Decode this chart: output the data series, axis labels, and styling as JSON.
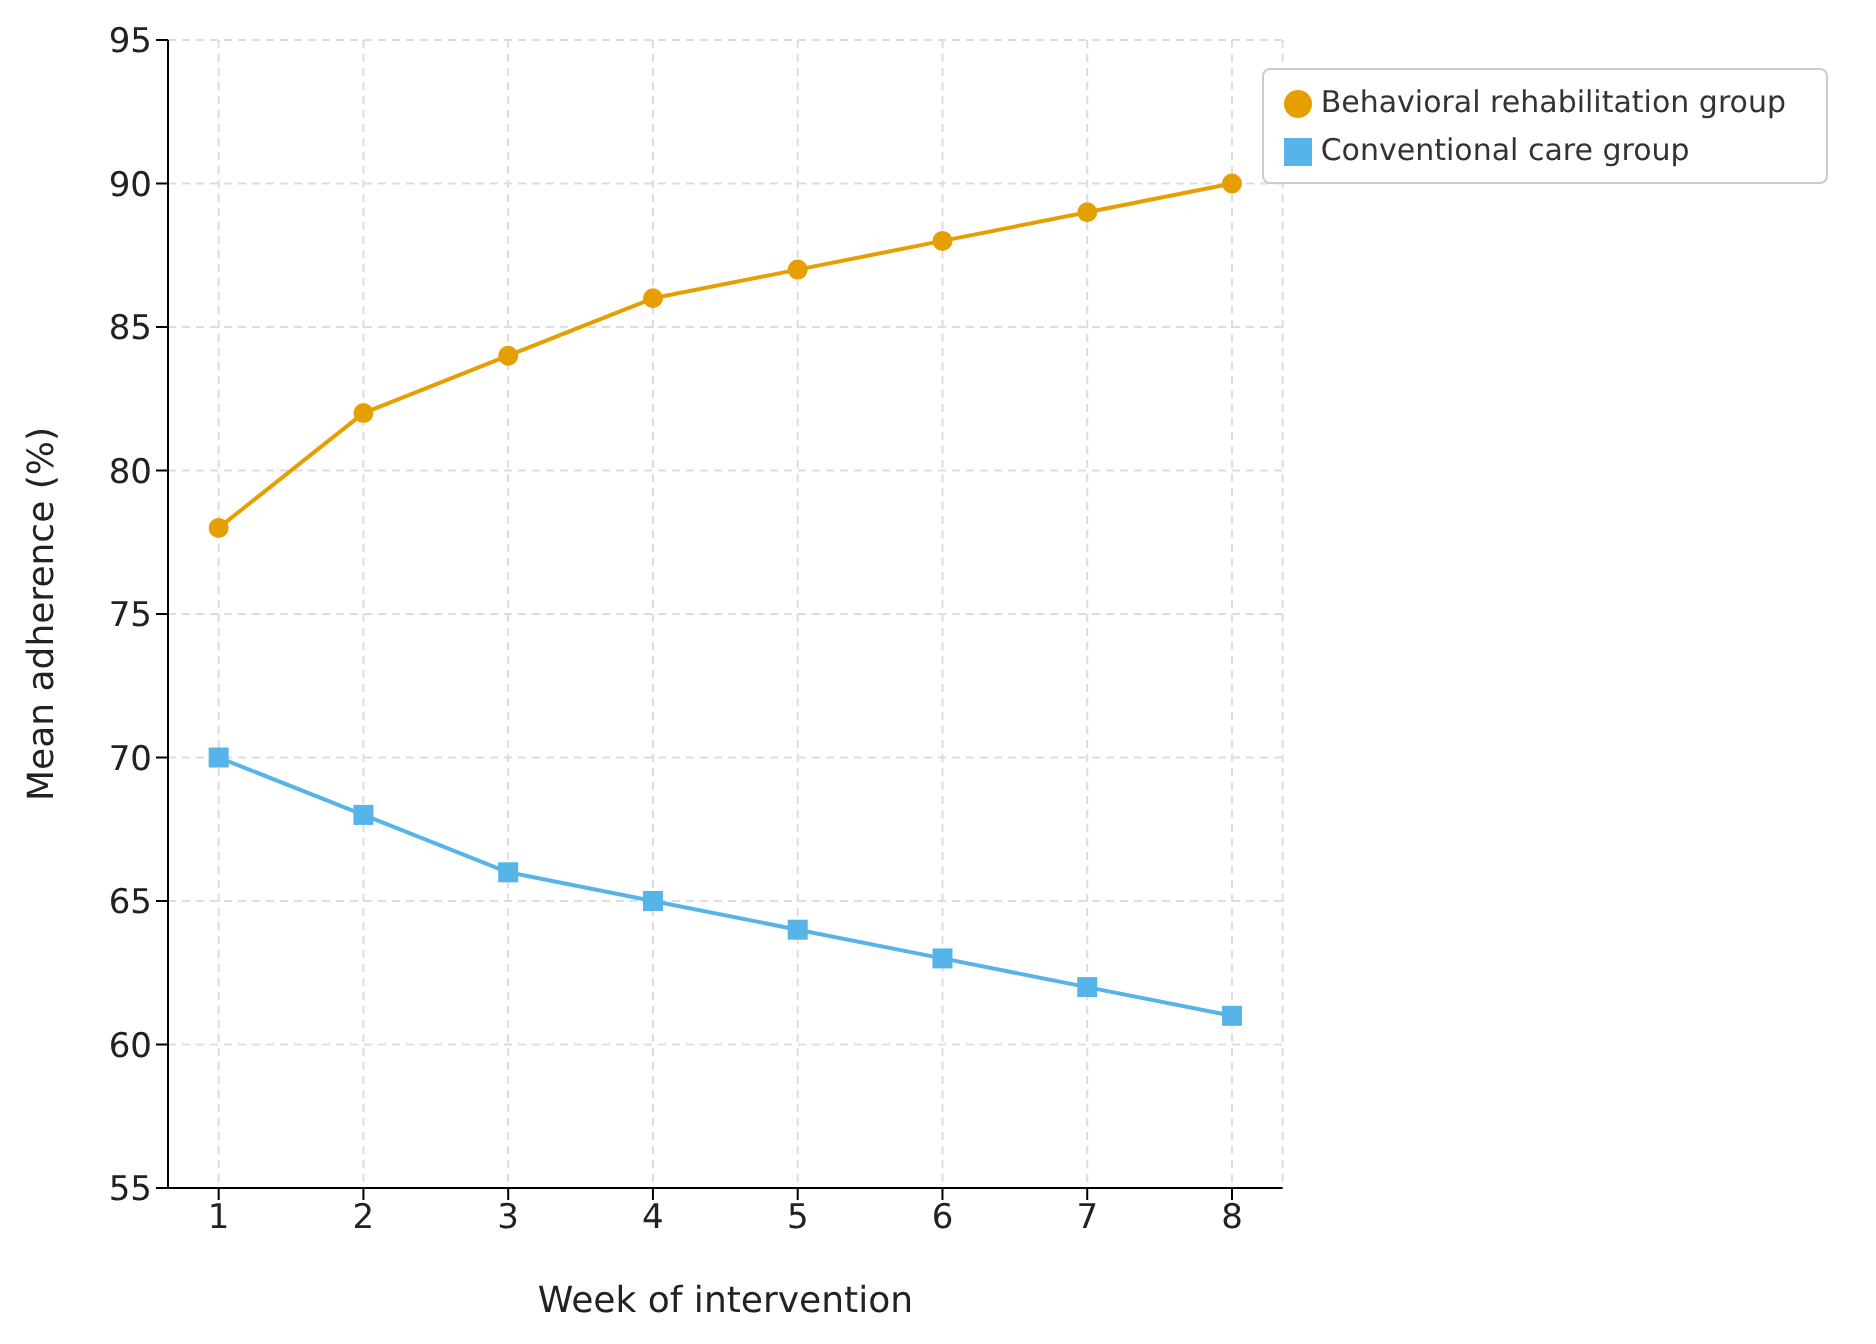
{
  "chart_data": {
    "type": "line",
    "xlabel": "Week of intervention",
    "ylabel": "Mean adherence (%)",
    "x": [
      1,
      2,
      3,
      4,
      5,
      6,
      7,
      8
    ],
    "series": [
      {
        "name": "Behavioral rehabilitation group",
        "color": "#e69f00",
        "marker": "circle",
        "values": [
          78,
          82,
          84,
          86,
          87,
          88,
          89,
          90
        ]
      },
      {
        "name": "Conventional care group",
        "color": "#56b4e9",
        "marker": "square",
        "values": [
          70,
          68,
          66,
          65,
          64,
          63,
          62,
          61
        ]
      }
    ],
    "xlim": [
      0.65,
      8.35
    ],
    "xticks": [
      1,
      2,
      3,
      4,
      5,
      6,
      7,
      8
    ],
    "ylim": [
      55,
      95
    ],
    "yticks": [
      55,
      60,
      65,
      70,
      75,
      80,
      85,
      90,
      95
    ],
    "grid": true,
    "legend": "top right",
    "line_style": "solid"
  }
}
